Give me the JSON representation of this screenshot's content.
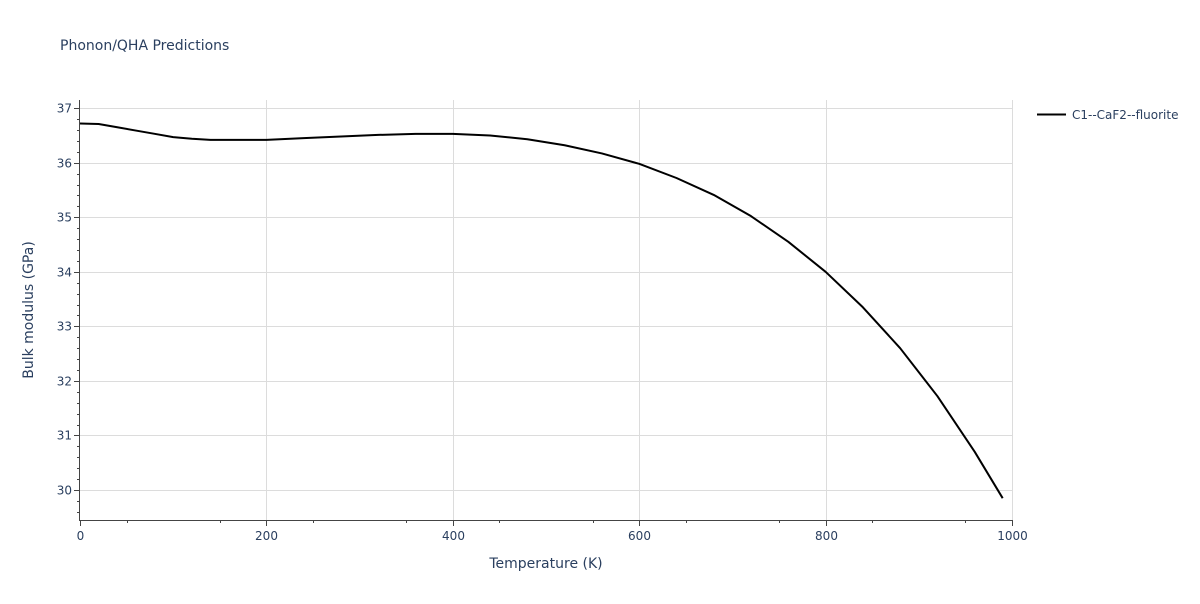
{
  "chart_data": {
    "type": "line",
    "title": "Phonon/QHA Predictions",
    "xlabel": "Temperature (K)",
    "ylabel": "Bulk modulus (GPa)",
    "xlim": [
      0,
      1000
    ],
    "ylim": [
      29.45,
      37.15
    ],
    "x_ticks": [
      0,
      200,
      400,
      600,
      800,
      1000
    ],
    "y_ticks": [
      30,
      31,
      32,
      33,
      34,
      35,
      36,
      37
    ],
    "grid": true,
    "legend_position": "top-right",
    "series": [
      {
        "name": "C1--CaF2--fluorite",
        "color": "#000000",
        "x": [
          0,
          20,
          40,
          60,
          80,
          100,
          120,
          140,
          160,
          180,
          200,
          240,
          280,
          320,
          360,
          400,
          440,
          480,
          520,
          560,
          600,
          640,
          680,
          720,
          760,
          800,
          840,
          880,
          920,
          960,
          990
        ],
        "y": [
          36.72,
          36.71,
          36.65,
          36.59,
          36.53,
          36.47,
          36.44,
          36.42,
          36.42,
          36.42,
          36.42,
          36.45,
          36.48,
          36.51,
          36.53,
          36.53,
          36.5,
          36.43,
          36.32,
          36.17,
          35.98,
          35.72,
          35.41,
          35.02,
          34.55,
          34.0,
          33.35,
          32.6,
          31.72,
          30.7,
          29.85
        ]
      }
    ]
  }
}
